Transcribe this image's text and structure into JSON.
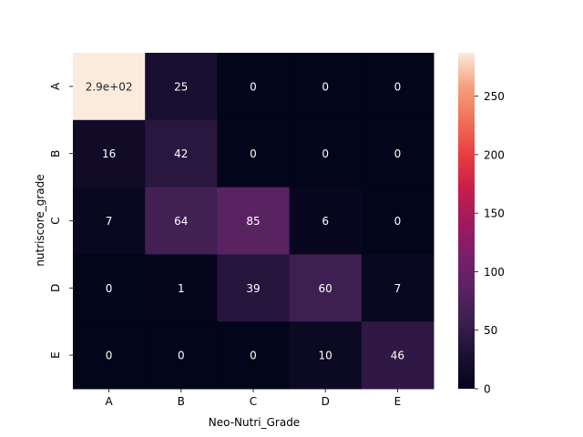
{
  "chart_data": {
    "type": "heatmap",
    "title": "",
    "xlabel": "Neo-Nutri_Grade",
    "ylabel": "nutriscore_grade",
    "x_categories": [
      "A",
      "B",
      "C",
      "D",
      "E"
    ],
    "y_categories": [
      "A",
      "B",
      "C",
      "D",
      "E"
    ],
    "values": [
      [
        290,
        25,
        0,
        0,
        0
      ],
      [
        16,
        42,
        0,
        0,
        0
      ],
      [
        7,
        64,
        85,
        6,
        0
      ],
      [
        0,
        1,
        39,
        60,
        7
      ],
      [
        0,
        0,
        0,
        10,
        46
      ]
    ],
    "annotations": [
      [
        "2.9e+02",
        "25",
        "0",
        "0",
        "0"
      ],
      [
        "16",
        "42",
        "0",
        "0",
        "0"
      ],
      [
        "7",
        "64",
        "85",
        "6",
        "0"
      ],
      [
        "0",
        "1",
        "39",
        "60",
        "7"
      ],
      [
        "0",
        "0",
        "0",
        "10",
        "46"
      ]
    ],
    "colorbar": {
      "range": [
        0,
        287
      ],
      "ticks": [
        0,
        50,
        100,
        150,
        200,
        250
      ],
      "tick_labels": [
        "0",
        "50",
        "100",
        "150",
        "200",
        "250"
      ],
      "colormap": "rocket"
    },
    "grid": false,
    "legend": "colorbar-right"
  }
}
